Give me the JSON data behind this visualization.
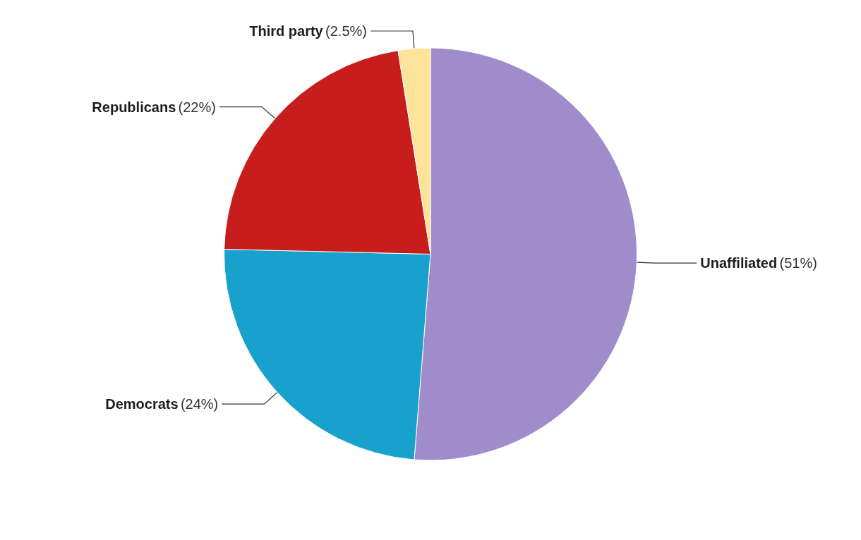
{
  "chart_data": {
    "type": "pie",
    "categories": [
      "Unaffiliated",
      "Democrats",
      "Republicans",
      "Third party"
    ],
    "values": [
      51,
      24,
      22,
      2.5
    ],
    "value_labels": [
      "(51%)",
      "(24%)",
      "(22%)",
      "(2.5%)"
    ],
    "colors": [
      "#a08bcb",
      "#18a1cd",
      "#c71e1d",
      "#fee39a"
    ],
    "legend": false
  }
}
